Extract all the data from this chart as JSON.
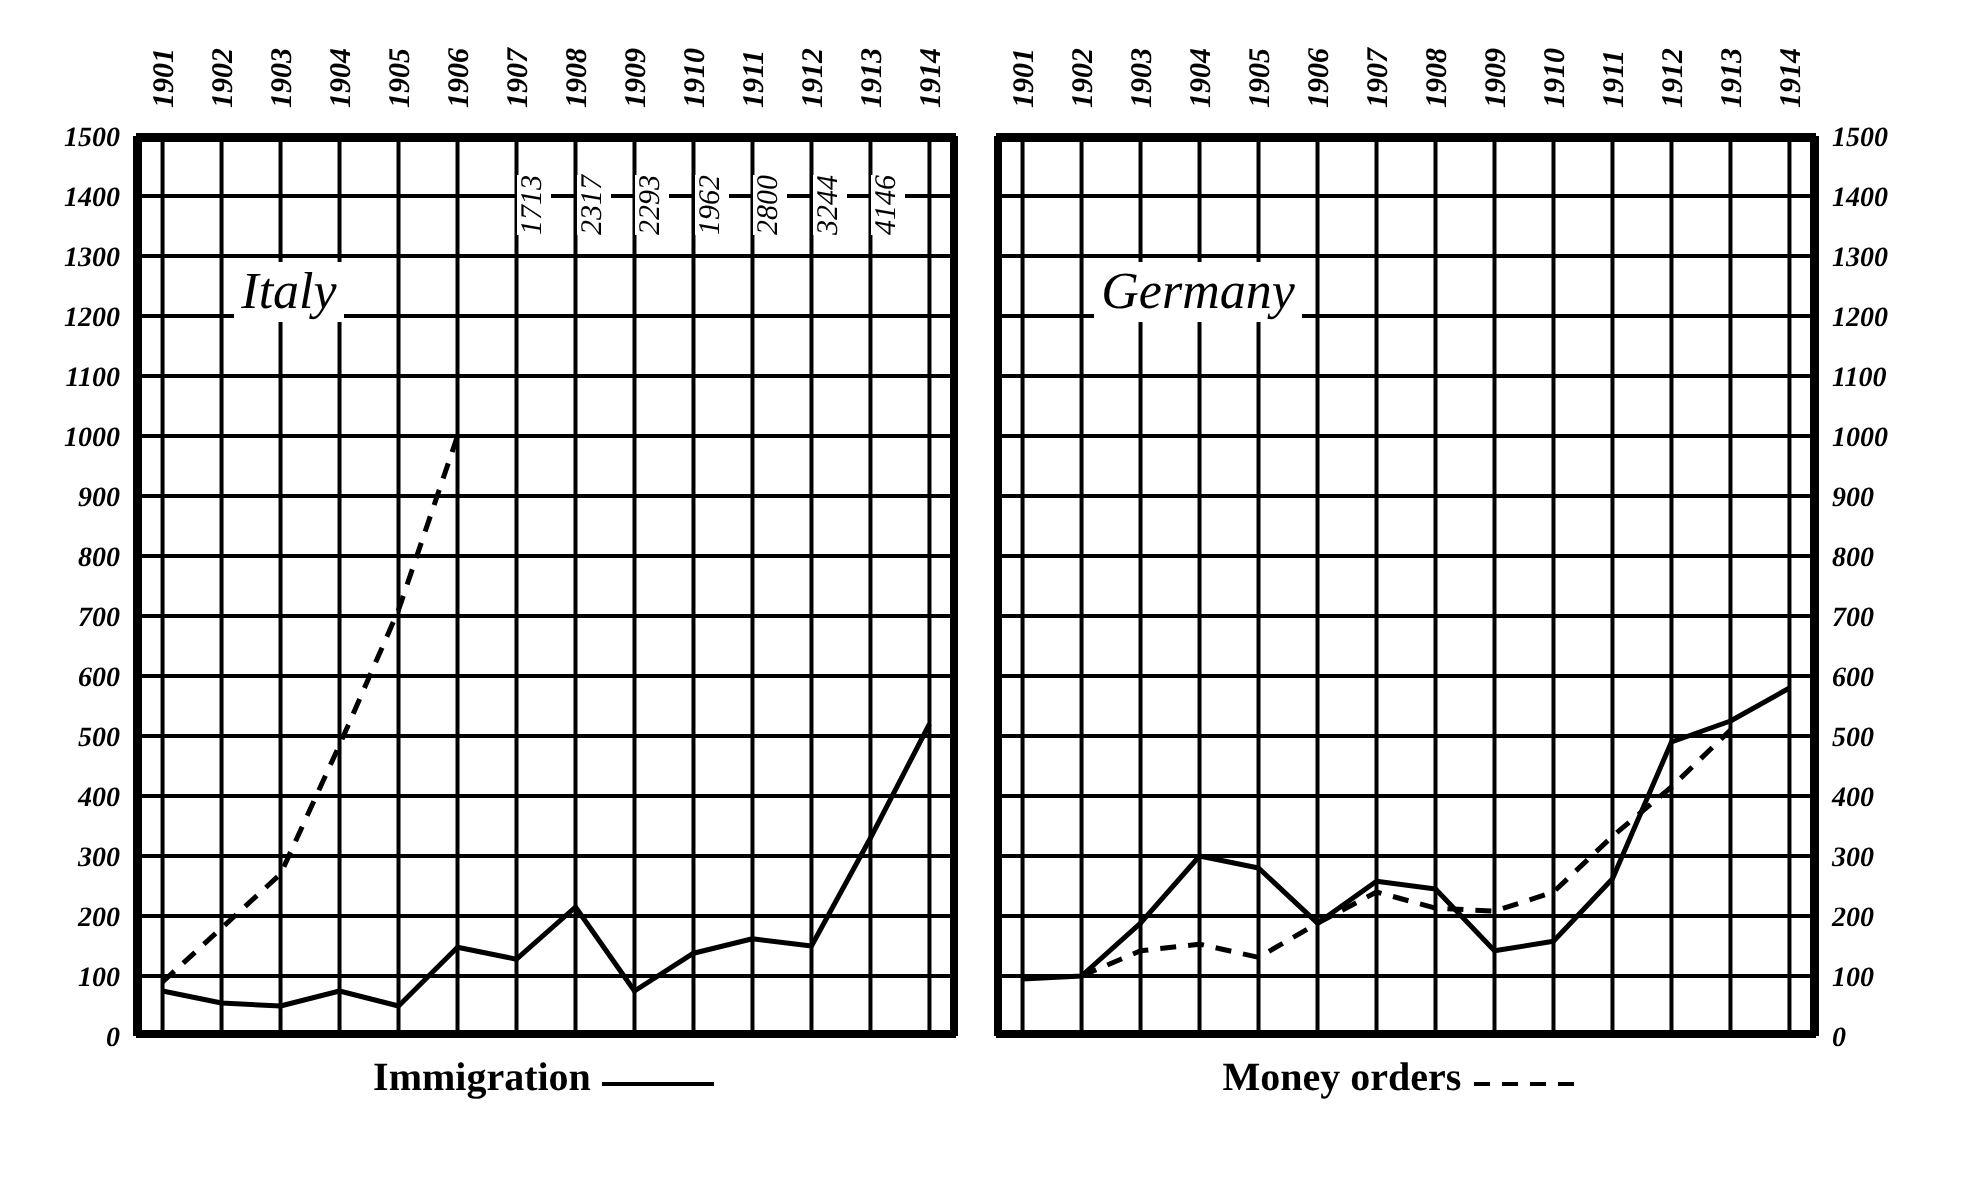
{
  "chart_data": [
    {
      "type": "line",
      "title": "Italy",
      "categories": [
        "1901",
        "1902",
        "1903",
        "1904",
        "1905",
        "1906",
        "1907",
        "1908",
        "1909",
        "1910",
        "1911",
        "1912",
        "1913",
        "1914"
      ],
      "series": [
        {
          "name": "Immigration",
          "color": "#000000",
          "line_style": "solid",
          "values": [
            75,
            55,
            50,
            75,
            50,
            148,
            128,
            215,
            75,
            138,
            162,
            150,
            330,
            520
          ]
        },
        {
          "color": "#000000",
          "line_style": "dashed",
          "values": [
            90,
            180,
            270,
            485,
            710,
            1000,
            null,
            null,
            null,
            null,
            null,
            null,
            null,
            null
          ]
        }
      ],
      "ylim": [
        0,
        1500
      ],
      "yticks": [
        0,
        100,
        200,
        300,
        400,
        500,
        600,
        700,
        800,
        900,
        1000,
        1100,
        1200,
        1300,
        1400,
        1500
      ],
      "grid": true,
      "legend": "bottom",
      "annotations": [
        "1713",
        "2317",
        "2293",
        "1962",
        "2800",
        "3244",
        "4146"
      ]
    },
    {
      "type": "line",
      "title": "Germany",
      "categories": [
        "1901",
        "1902",
        "1903",
        "1904",
        "1905",
        "1906",
        "1907",
        "1908",
        "1909",
        "1910",
        "1911",
        "1912",
        "1913",
        "1914"
      ],
      "series": [
        {
          "color": "#000000",
          "line_style": "solid",
          "axis": "y2",
          "values": [
            95,
            100,
            188,
            300,
            280,
            188,
            258,
            245,
            142,
            158,
            262,
            490,
            525,
            580
          ]
        },
        {
          "name": "Money orders",
          "color": "#000000",
          "line_style": "dashed",
          "axis": "y2",
          "values": [
            null,
            100,
            142,
            153,
            131,
            188,
            240,
            213,
            208,
            240,
            333,
            415,
            510,
            null
          ]
        }
      ],
      "y2lim": [
        0,
        1500
      ],
      "y2ticks": [
        0,
        100,
        200,
        300,
        400,
        500,
        600,
        700,
        800,
        900,
        1000,
        1100,
        1200,
        1300,
        1400,
        1500
      ],
      "grid": true,
      "legend": "bottom"
    }
  ]
}
